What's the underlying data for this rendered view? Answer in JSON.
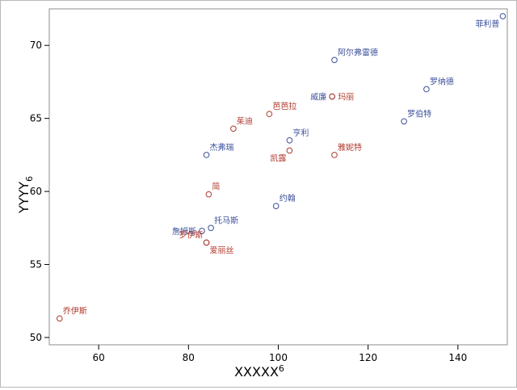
{
  "chart_data": {
    "type": "scatter",
    "xlabel": "XXXXX",
    "xlabel_sup": "6",
    "ylabel": "YYYY",
    "ylabel_sub": "6",
    "xlim": [
      49,
      151
    ],
    "ylim": [
      49.5,
      72.5
    ],
    "xticks": [
      60,
      80,
      100,
      120,
      140
    ],
    "yticks": [
      50,
      55,
      60,
      65,
      70
    ],
    "grid": false,
    "colors": {
      "male": "#3b4f9a",
      "female": "#b03a2e"
    },
    "points": [
      {
        "name": "菲利普",
        "x": 150,
        "y": 72,
        "group": "male",
        "label_pos": "bl"
      },
      {
        "name": "阿尔弗雷德",
        "x": 112.5,
        "y": 69,
        "group": "male",
        "label_pos": "tr"
      },
      {
        "name": "罗纳德",
        "x": 133,
        "y": 67,
        "group": "male",
        "label_pos": "tr"
      },
      {
        "name": "威廉",
        "x": 112,
        "y": 66.5,
        "group": "male",
        "label_pos": "l"
      },
      {
        "name": "玛丽",
        "x": 112,
        "y": 66.5,
        "group": "female",
        "label_pos": "r"
      },
      {
        "name": "芭芭拉",
        "x": 98,
        "y": 65.3,
        "group": "female",
        "label_pos": "tr"
      },
      {
        "name": "罗伯特",
        "x": 128,
        "y": 64.8,
        "group": "male",
        "label_pos": "tr"
      },
      {
        "name": "茱迪",
        "x": 90,
        "y": 64.3,
        "group": "female",
        "label_pos": "tr"
      },
      {
        "name": "亨利",
        "x": 102.5,
        "y": 63.5,
        "group": "male",
        "label_pos": "tr"
      },
      {
        "name": "凯露",
        "x": 102.5,
        "y": 62.8,
        "group": "female",
        "label_pos": "bl"
      },
      {
        "name": "雅妮特",
        "x": 112.5,
        "y": 62.5,
        "group": "female",
        "label_pos": "tr"
      },
      {
        "name": "杰弗瑞",
        "x": 84,
        "y": 62.5,
        "group": "male",
        "label_pos": "tr"
      },
      {
        "name": "简",
        "x": 84.5,
        "y": 59.8,
        "group": "female",
        "label_pos": "tr"
      },
      {
        "name": "约翰",
        "x": 99.5,
        "y": 59,
        "group": "male",
        "label_pos": "tr"
      },
      {
        "name": "托马斯",
        "x": 85,
        "y": 57.5,
        "group": "male",
        "label_pos": "tr"
      },
      {
        "name": "詹姆斯",
        "x": 83,
        "y": 57.3,
        "group": "male",
        "label_pos": "l"
      },
      {
        "name": "罗伊斯",
        "x": 84,
        "y": 56.5,
        "group": "female",
        "label_pos": "tl"
      },
      {
        "name": "爱丽丝",
        "x": 84,
        "y": 56.5,
        "group": "female",
        "label_pos": "br"
      },
      {
        "name": "乔伊斯",
        "x": 51.3,
        "y": 51.3,
        "group": "female",
        "label_pos": "tr"
      }
    ]
  }
}
